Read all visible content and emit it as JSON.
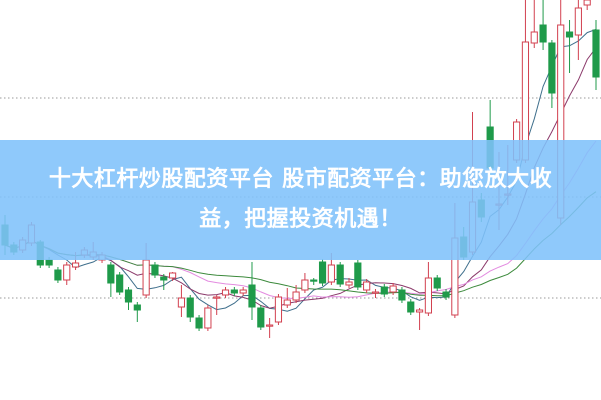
{
  "banner": {
    "title_line1": "十大杠杆炒股配资平台 股市配资平台：助您放大收",
    "title_line2": "益，把握投资机遇！"
  },
  "chart_data": {
    "type": "candlestick",
    "title": "",
    "xlabel": "",
    "ylabel": "",
    "ylim": [
      0,
      40
    ],
    "grid": "dotted horizontal reference lines",
    "colors": {
      "up": "#d2404f",
      "down": "#1f9a4a",
      "ma": [
        "#3f6f8c",
        "#8b3a6b",
        "#e38be0",
        "#3c8a3c"
      ]
    },
    "moving_average_periods": [
      5,
      10,
      20,
      30
    ],
    "ohlc": [
      [
        17.5,
        15.5,
        18.5,
        14.5
      ],
      [
        15.5,
        14.8,
        15.8,
        14.5
      ],
      [
        15.0,
        16.0,
        16.3,
        14.7
      ],
      [
        15.7,
        17.5,
        17.8,
        15.4
      ],
      [
        15.8,
        13.5,
        16.0,
        13.2
      ],
      [
        14.0,
        13.5,
        14.3,
        13.2
      ],
      [
        13.0,
        12.0,
        13.3,
        11.7
      ],
      [
        12.0,
        13.5,
        13.8,
        11.5
      ],
      [
        13.3,
        13.7,
        14.8,
        13.0
      ],
      [
        14.5,
        15.0,
        15.3,
        14.2
      ],
      [
        14.3,
        14.8,
        15.8,
        14.0
      ],
      [
        14.0,
        14.5,
        14.8,
        13.7
      ],
      [
        13.5,
        11.7,
        13.8,
        10.3
      ],
      [
        12.5,
        10.8,
        12.8,
        10.5
      ],
      [
        11.0,
        9.8,
        11.3,
        9.0
      ],
      [
        9.5,
        9.0,
        9.8,
        7.8
      ],
      [
        10.5,
        14.0,
        15.7,
        10.2
      ],
      [
        13.5,
        12.5,
        13.8,
        12.2
      ],
      [
        12.3,
        12.0,
        12.6,
        11.0
      ],
      [
        12.2,
        12.7,
        12.8,
        11.9
      ],
      [
        9.3,
        10.2,
        11.5,
        8.3
      ],
      [
        10.2,
        8.3,
        10.5,
        7.8
      ],
      [
        8.2,
        7.2,
        8.5,
        6.9
      ],
      [
        7.2,
        9.2,
        9.5,
        6.9
      ],
      [
        10.3,
        10.3,
        10.5,
        8.5
      ],
      [
        10.5,
        11.0,
        11.3,
        10.2
      ],
      [
        11.0,
        10.7,
        11.3,
        10.4
      ],
      [
        10.7,
        11.0,
        11.3,
        10.4
      ],
      [
        11.5,
        9.3,
        13.8,
        8.0
      ],
      [
        9.2,
        7.3,
        9.5,
        7.0
      ],
      [
        7.5,
        7.5,
        8.2,
        6.2
      ],
      [
        7.8,
        10.3,
        10.6,
        7.5
      ],
      [
        9.5,
        10.0,
        11.2,
        9.2
      ],
      [
        10.0,
        10.8,
        11.5,
        9.7
      ],
      [
        11.0,
        12.0,
        12.7,
        10.7
      ],
      [
        12.0,
        11.9,
        12.2,
        11.5
      ],
      [
        13.8,
        11.7,
        14.1,
        11.4
      ],
      [
        11.8,
        13.5,
        14.7,
        11.5
      ],
      [
        13.5,
        11.6,
        13.8,
        11.3
      ],
      [
        11.5,
        11.8,
        12.2,
        11.2
      ],
      [
        13.7,
        11.3,
        14.0,
        11.0
      ],
      [
        11.0,
        11.8,
        12.1,
        10.7
      ],
      [
        10.8,
        10.8,
        11.1,
        10.2
      ],
      [
        11.3,
        10.6,
        11.6,
        10.3
      ],
      [
        10.8,
        11.4,
        11.7,
        10.5
      ],
      [
        11.0,
        10.0,
        11.3,
        9.7
      ],
      [
        9.8,
        8.8,
        10.1,
        8.5
      ],
      [
        8.8,
        9.0,
        9.2,
        7.0
      ],
      [
        8.7,
        12.2,
        13.8,
        8.4
      ],
      [
        12.2,
        11.2,
        12.5,
        10.9
      ],
      [
        10.8,
        10.3,
        11.1,
        10.0
      ],
      [
        8.5,
        16.2,
        19.7,
        8.2
      ],
      [
        16.3,
        14.3,
        17.3,
        14.0
      ],
      [
        14.8,
        19.8,
        28.8,
        14.5
      ],
      [
        20.0,
        18.3,
        20.7,
        17.8
      ],
      [
        27.3,
        23.2,
        30.0,
        22.5
      ],
      [
        19.5,
        19.6,
        24.8,
        17.0
      ],
      [
        20.5,
        20.6,
        25.5,
        19.5
      ],
      [
        24.0,
        27.8,
        28.1,
        23.7
      ],
      [
        24.0,
        35.8,
        40.0,
        23.7
      ],
      [
        35.7,
        36.8,
        40.0,
        35.2
      ],
      [
        37.5,
        35.8,
        40.0,
        35.0
      ],
      [
        35.7,
        30.7,
        36.0,
        29.2
      ],
      [
        18.2,
        37.5,
        40.0,
        17.5
      ],
      [
        36.8,
        36.3,
        38.0,
        32.7
      ],
      [
        36.5,
        39.2,
        40.0,
        34.0
      ],
      [
        39.5,
        40.0,
        40.0,
        39.0
      ],
      [
        37.0,
        32.3,
        38.0,
        31.0
      ]
    ]
  }
}
